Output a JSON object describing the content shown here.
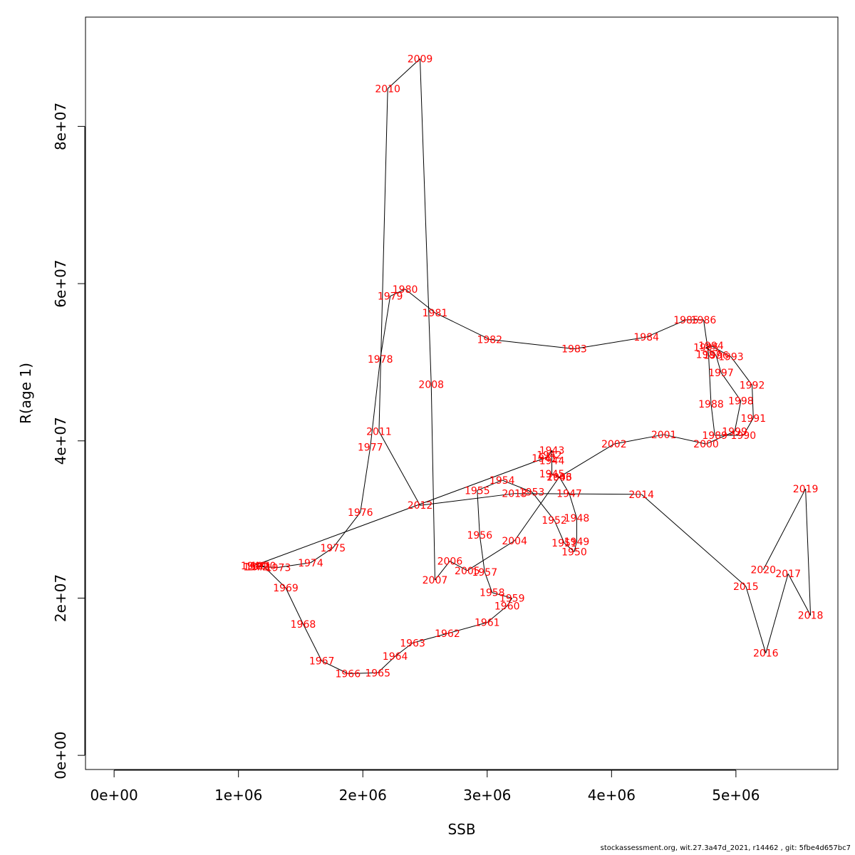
{
  "chart_data": {
    "type": "line",
    "xlabel": "SSB",
    "ylabel": "R(age 1)",
    "xlim": [
      -230000,
      5820000
    ],
    "ylim": [
      -1800000,
      93900000
    ],
    "x_ticks": [
      0,
      1000000,
      2000000,
      3000000,
      4000000,
      5000000
    ],
    "x_tick_labels": [
      "0e+00",
      "1e+06",
      "2e+06",
      "3e+06",
      "4e+06",
      "5e+06"
    ],
    "y_ticks": [
      0,
      20000000,
      40000000,
      60000000,
      80000000
    ],
    "y_tick_labels": [
      "0e+00",
      "2e+07",
      "4e+07",
      "6e+07",
      "8e+07"
    ],
    "grid": false,
    "legend": "none",
    "line_color": "#000000",
    "label_color": "#ff0000",
    "points": [
      {
        "year": "1940",
        "x": 1120000,
        "y": 24100000
      },
      {
        "year": "1941",
        "x": 3460000,
        "y": 37800000
      },
      {
        "year": "1942",
        "x": 3500000,
        "y": 38200000
      },
      {
        "year": "1943",
        "x": 3520000,
        "y": 38800000
      },
      {
        "year": "1944",
        "x": 3520000,
        "y": 37500000
      },
      {
        "year": "1945",
        "x": 3520000,
        "y": 35800000
      },
      {
        "year": "1946",
        "x": 3580000,
        "y": 35400000
      },
      {
        "year": "1947",
        "x": 3660000,
        "y": 33300000
      },
      {
        "year": "1948",
        "x": 3720000,
        "y": 30200000
      },
      {
        "year": "1949",
        "x": 3720000,
        "y": 27200000
      },
      {
        "year": "1950",
        "x": 3700000,
        "y": 25900000
      },
      {
        "year": "1951",
        "x": 3620000,
        "y": 27000000
      },
      {
        "year": "1952",
        "x": 3540000,
        "y": 29900000
      },
      {
        "year": "1953",
        "x": 3360000,
        "y": 33500000
      },
      {
        "year": "1954",
        "x": 3120000,
        "y": 35000000
      },
      {
        "year": "1955",
        "x": 2920000,
        "y": 33700000
      },
      {
        "year": "1956",
        "x": 2940000,
        "y": 28000000
      },
      {
        "year": "1957",
        "x": 2980000,
        "y": 23300000
      },
      {
        "year": "1958",
        "x": 3040000,
        "y": 20700000
      },
      {
        "year": "1959",
        "x": 3200000,
        "y": 20000000
      },
      {
        "year": "1960",
        "x": 3160000,
        "y": 19000000
      },
      {
        "year": "1961",
        "x": 3000000,
        "y": 16900000
      },
      {
        "year": "1962",
        "x": 2680000,
        "y": 15500000
      },
      {
        "year": "1963",
        "x": 2400000,
        "y": 14300000
      },
      {
        "year": "1964",
        "x": 2260000,
        "y": 12600000
      },
      {
        "year": "1965",
        "x": 2120000,
        "y": 10500000
      },
      {
        "year": "1966",
        "x": 1880000,
        "y": 10400000
      },
      {
        "year": "1967",
        "x": 1670000,
        "y": 12000000
      },
      {
        "year": "1968",
        "x": 1520000,
        "y": 16700000
      },
      {
        "year": "1969",
        "x": 1380000,
        "y": 21300000
      },
      {
        "year": "1970",
        "x": 1200000,
        "y": 24100000
      },
      {
        "year": "1971",
        "x": 1160000,
        "y": 24000000
      },
      {
        "year": "1972",
        "x": 1140000,
        "y": 24000000
      },
      {
        "year": "1973",
        "x": 1320000,
        "y": 23900000
      },
      {
        "year": "1974",
        "x": 1580000,
        "y": 24500000
      },
      {
        "year": "1975",
        "x": 1760000,
        "y": 26400000
      },
      {
        "year": "1976",
        "x": 1980000,
        "y": 30900000
      },
      {
        "year": "1977",
        "x": 2060000,
        "y": 39200000
      },
      {
        "year": "1978",
        "x": 2140000,
        "y": 50400000
      },
      {
        "year": "1979",
        "x": 2220000,
        "y": 58400000
      },
      {
        "year": "1980",
        "x": 2340000,
        "y": 59300000
      },
      {
        "year": "1981",
        "x": 2580000,
        "y": 56300000
      },
      {
        "year": "1982",
        "x": 3020000,
        "y": 52900000
      },
      {
        "year": "1983",
        "x": 3700000,
        "y": 51700000
      },
      {
        "year": "1984",
        "x": 4280000,
        "y": 53200000
      },
      {
        "year": "1985",
        "x": 4600000,
        "y": 55400000
      },
      {
        "year": "1986",
        "x": 4740000,
        "y": 55400000
      },
      {
        "year": "1987",
        "x": 4780000,
        "y": 51000000
      },
      {
        "year": "1988",
        "x": 4800000,
        "y": 44700000
      },
      {
        "year": "1989",
        "x": 4830000,
        "y": 40700000
      },
      {
        "year": "1990",
        "x": 5060000,
        "y": 40700000
      },
      {
        "year": "1991",
        "x": 5140000,
        "y": 42900000
      },
      {
        "year": "1992",
        "x": 5130000,
        "y": 47100000
      },
      {
        "year": "1993",
        "x": 4960000,
        "y": 50700000
      },
      {
        "year": "1994",
        "x": 4800000,
        "y": 52100000
      },
      {
        "year": "1995",
        "x": 4760000,
        "y": 51900000
      },
      {
        "year": "1996",
        "x": 4840000,
        "y": 50900000
      },
      {
        "year": "1997",
        "x": 4880000,
        "y": 48700000
      },
      {
        "year": "1998",
        "x": 5040000,
        "y": 45100000
      },
      {
        "year": "1999",
        "x": 4990000,
        "y": 41200000
      },
      {
        "year": "2000",
        "x": 4760000,
        "y": 39600000
      },
      {
        "year": "2001",
        "x": 4420000,
        "y": 40800000
      },
      {
        "year": "2002",
        "x": 4020000,
        "y": 39600000
      },
      {
        "year": "2003",
        "x": 3580000,
        "y": 35400000
      },
      {
        "year": "2004",
        "x": 3220000,
        "y": 27300000
      },
      {
        "year": "2005",
        "x": 2840000,
        "y": 23500000
      },
      {
        "year": "2006",
        "x": 2700000,
        "y": 24700000
      },
      {
        "year": "2007",
        "x": 2580000,
        "y": 22300000
      },
      {
        "year": "2008",
        "x": 2550000,
        "y": 47200000
      },
      {
        "year": "2009",
        "x": 2460000,
        "y": 88600000
      },
      {
        "year": "2010",
        "x": 2200000,
        "y": 84800000
      },
      {
        "year": "2011",
        "x": 2130000,
        "y": 41200000
      },
      {
        "year": "2012",
        "x": 2460000,
        "y": 31800000
      },
      {
        "year": "2013",
        "x": 3220000,
        "y": 33300000
      },
      {
        "year": "2014",
        "x": 4240000,
        "y": 33200000
      },
      {
        "year": "2015",
        "x": 5080000,
        "y": 21500000
      },
      {
        "year": "2016",
        "x": 5240000,
        "y": 13000000
      },
      {
        "year": "2017",
        "x": 5420000,
        "y": 23100000
      },
      {
        "year": "2018",
        "x": 5600000,
        "y": 17800000
      },
      {
        "year": "2019",
        "x": 5560000,
        "y": 33900000
      },
      {
        "year": "2020",
        "x": 5220000,
        "y": 23600000
      }
    ]
  },
  "footer": "stockassessment.org, wit.27.3a47d_2021, r14462 , git: 5fbe4d657bc7"
}
